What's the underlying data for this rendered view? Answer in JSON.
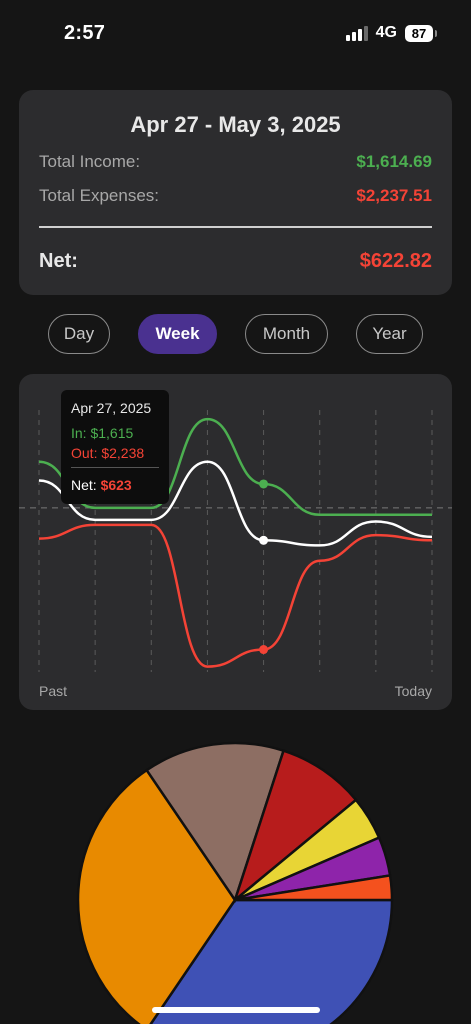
{
  "status_bar": {
    "time": "2:57",
    "network": "4G",
    "battery": "87"
  },
  "summary": {
    "title": "Apr 27 - May 3, 2025",
    "income_label": "Total Income:",
    "income_value": "$1,614.69",
    "expenses_label": "Total Expenses:",
    "expenses_value": "$2,237.51",
    "net_label": "Net:",
    "net_value": "$622.82"
  },
  "periods": [
    {
      "label": "Day",
      "active": false
    },
    {
      "label": "Week",
      "active": true
    },
    {
      "label": "Month",
      "active": false
    },
    {
      "label": "Year",
      "active": false
    }
  ],
  "colors": {
    "income": "#4caf50",
    "expense": "#f44336",
    "net": "#ffffff",
    "accent": "#4a3190"
  },
  "chart_data": [
    {
      "type": "line",
      "x_start_label": "Past",
      "x_end_label": "Today",
      "grid": "vertical dashed",
      "series": [
        {
          "name": "In",
          "color": "#4caf50",
          "values": [
            0.72,
            0.45,
            0.45,
            0.97,
            0.59,
            0.41,
            0.41,
            0.41
          ]
        },
        {
          "name": "Net",
          "color": "#ffffff",
          "values": [
            0.61,
            0.38,
            0.38,
            0.72,
            0.26,
            0.23,
            0.37,
            0.28
          ]
        },
        {
          "name": "Out",
          "color": "#f44336",
          "values": [
            0.27,
            0.35,
            0.35,
            -0.48,
            -0.38,
            0.14,
            0.29,
            0.26
          ]
        }
      ],
      "baseline": 0.45,
      "tooltip": {
        "date": "Apr 27, 2025",
        "in": "In: $1,615",
        "out": "Out: $2,238",
        "net_label": "Net:",
        "net_value": "$623"
      }
    },
    {
      "type": "pie",
      "slices": [
        {
          "color": "#3f51b5",
          "value": 34.5
        },
        {
          "color": "#e88a00",
          "value": 31.0
        },
        {
          "color": "#8d6e63",
          "value": 14.5
        },
        {
          "color": "#b71c1c",
          "value": 9.0
        },
        {
          "color": "#e8d535",
          "value": 4.5
        },
        {
          "color": "#8e24aa",
          "value": 4.0
        },
        {
          "color": "#f4511e",
          "value": 2.5
        }
      ]
    }
  ]
}
